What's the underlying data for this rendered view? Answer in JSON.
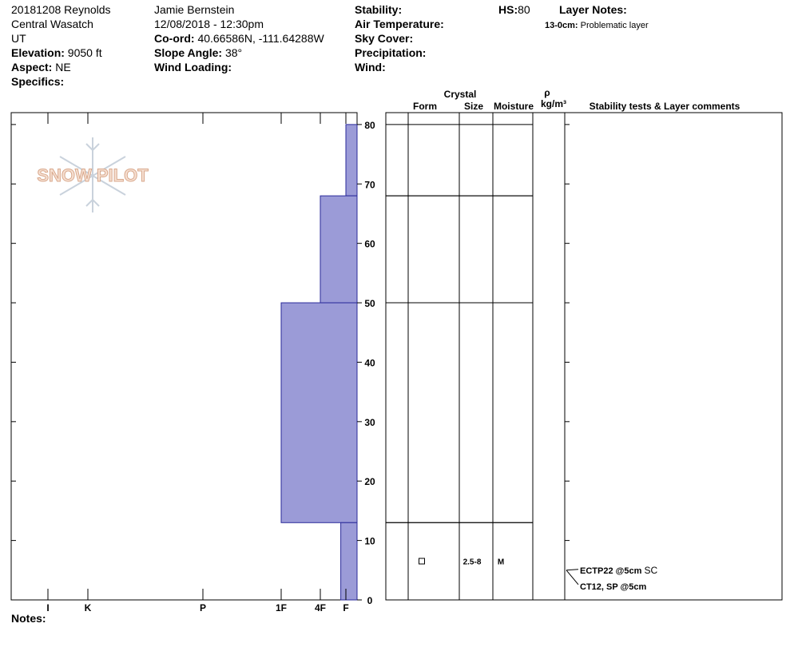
{
  "header": {
    "col1": [
      {
        "value": "20181208 Reynolds"
      },
      {
        "value": "Central Wasatch"
      },
      {
        "value": "UT"
      },
      {
        "label": "Elevation:",
        "value": "9050 ft"
      },
      {
        "label": "Aspect:",
        "value": "NE"
      },
      {
        "label": "Specifics:"
      }
    ],
    "col2": [
      {
        "value": "Jamie Bernstein"
      },
      {
        "value": "12/08/2018 - 12:30pm"
      },
      {
        "label": "Co-ord:",
        "value": "40.66586N, -111.64288W"
      },
      {
        "label": "Slope Angle:",
        "value": "38°"
      },
      {
        "label": "Wind Loading:"
      }
    ],
    "col3": [
      {
        "label": "Stability:"
      },
      {
        "label": "Air Temperature:"
      },
      {
        "label": "Sky Cover:"
      },
      {
        "label": "Precipitation:"
      },
      {
        "label": "Wind:"
      }
    ],
    "hs": {
      "label": "HS:",
      "value": 80
    },
    "layer_notes": {
      "title": "Layer Notes:",
      "items": [
        {
          "range": "13-0cm:",
          "text": "Problematic layer"
        }
      ]
    }
  },
  "logo": "SNOW PILOT",
  "profile": {
    "ylim": [
      0,
      82
    ],
    "yticks": [
      0,
      10,
      20,
      30,
      40,
      50,
      60,
      70,
      80
    ],
    "xlim": [
      0,
      6.92
    ],
    "xticks": [
      {
        "value": 6,
        "label": "I"
      },
      {
        "value": 5,
        "label": "K"
      },
      {
        "value": 4,
        "label": "P"
      },
      {
        "value": 3,
        "label": "1F"
      },
      {
        "value": 2,
        "label": "4F"
      },
      {
        "value": 1,
        "label": "F"
      }
    ],
    "color": "#9b9bd7",
    "layers": [
      {
        "top": 80,
        "bottom": 68,
        "hardness": 1
      },
      {
        "top": 68,
        "bottom": 50,
        "hardness": 2
      },
      {
        "top": 50,
        "bottom": 13,
        "hardness": 3
      },
      {
        "top": 13,
        "bottom": 0,
        "hardness": 1.2
      }
    ]
  },
  "table": {
    "headers": {
      "crystal": "Crystal",
      "form": "Form",
      "size": "Size",
      "moisture": "Moisture",
      "rho": "ρ",
      "density": "kg/m³",
      "comments": "Stability tests & Layer comments"
    },
    "crystals": [
      {
        "depth": 6.5,
        "size": "2.5-8",
        "moisture": "M"
      }
    ],
    "tests": {
      "depth": 5,
      "items": [
        {
          "text": "ECTP22 @5cm",
          "extra": "SC"
        },
        {
          "text": "CT12, SP @5cm"
        }
      ]
    }
  },
  "notes": "Notes:"
}
